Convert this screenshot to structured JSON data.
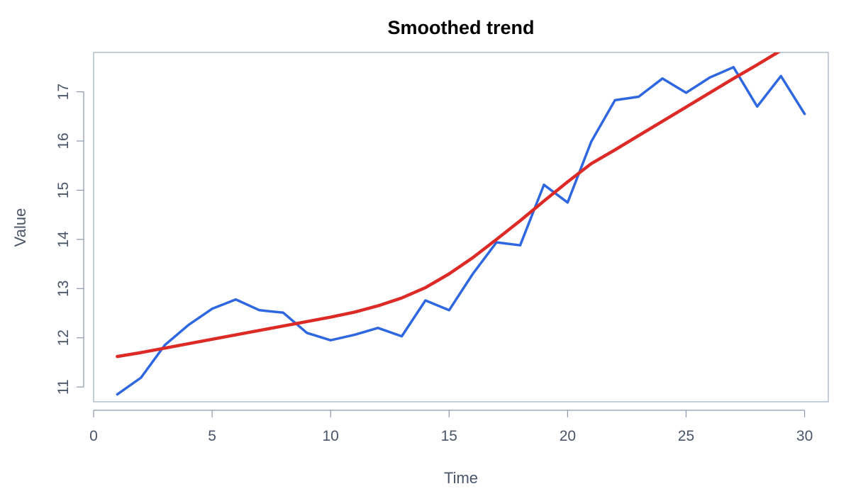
{
  "chart_data": {
    "type": "line",
    "title": "Smoothed trend",
    "xlabel": "Time",
    "ylabel": "Value",
    "xlim": [
      0,
      31
    ],
    "ylim": [
      10.7,
      17.8
    ],
    "x_ticks": [
      0,
      5,
      10,
      15,
      20,
      25,
      30
    ],
    "y_ticks": [
      11,
      12,
      13,
      14,
      15,
      16,
      17
    ],
    "grid": false,
    "series": [
      {
        "color": "#2f67e0",
        "x": [
          1,
          2,
          3,
          4,
          5,
          6,
          7,
          8,
          9,
          10,
          11,
          12,
          13,
          14,
          15,
          16,
          17,
          18,
          19,
          20,
          21,
          22,
          23,
          24,
          25,
          26,
          27,
          28,
          29,
          30
        ],
        "y": [
          10.85,
          11.19,
          11.85,
          12.26,
          12.59,
          12.78,
          12.56,
          12.51,
          12.1,
          11.95,
          12.06,
          12.2,
          12.03,
          12.76,
          12.56,
          13.3,
          13.94,
          13.88,
          15.11,
          14.75,
          15.99,
          16.83,
          16.9,
          17.27,
          16.98,
          17.29,
          17.5,
          16.7,
          17.32,
          16.55
        ]
      },
      {
        "color": "#dc2b27",
        "x": [
          1,
          2,
          3,
          4,
          5,
          6,
          7,
          8,
          9,
          10,
          11,
          12,
          13,
          14,
          15,
          16,
          17,
          18,
          19,
          20,
          21,
          22,
          23,
          24,
          25,
          26,
          27,
          28,
          29,
          30
        ],
        "y": [
          11.62,
          11.7,
          11.79,
          11.88,
          11.97,
          12.06,
          12.15,
          12.24,
          12.33,
          12.42,
          12.52,
          12.65,
          12.81,
          13.02,
          13.3,
          13.63,
          14.0,
          14.38,
          14.78,
          15.17,
          15.54,
          15.82,
          16.11,
          16.4,
          16.69,
          16.98,
          17.27,
          17.55,
          17.84,
          18.13
        ]
      }
    ]
  }
}
